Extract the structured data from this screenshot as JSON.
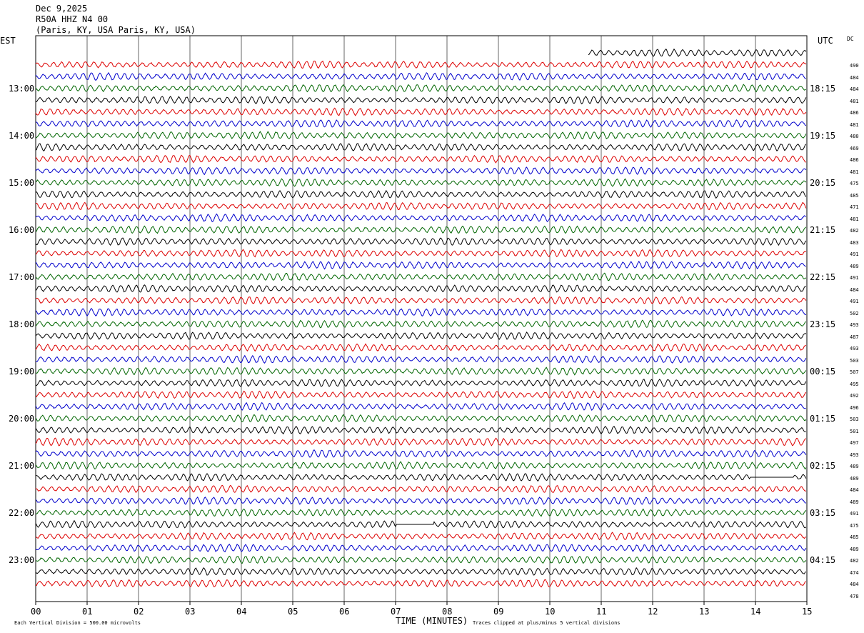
{
  "header": {
    "date": "Dec 9,2025",
    "station": "R50A HHZ N4 00",
    "location": "(Paris, KY, USA Paris, KY, USA)"
  },
  "left_tz": "EST",
  "right_tz": "UTC",
  "dc_label": "DC",
  "chart_data": {
    "type": "line",
    "title": "",
    "xlabel": "TIME (MINUTES)",
    "xlim": [
      0,
      15
    ],
    "x_ticks": [
      "00",
      "01",
      "02",
      "03",
      "04",
      "05",
      "06",
      "07",
      "08",
      "09",
      "10",
      "11",
      "12",
      "13",
      "14",
      "15"
    ],
    "left_hour_labels": [
      "13:00",
      "14:00",
      "15:00",
      "16:00",
      "17:00",
      "18:00",
      "19:00",
      "20:00",
      "21:00",
      "22:00",
      "23:00"
    ],
    "right_hour_labels": [
      "18:15",
      "19:15",
      "20:15",
      "21:15",
      "22:15",
      "23:15",
      "00:15",
      "01:15",
      "02:15",
      "03:15",
      "04:15"
    ],
    "trace_colors": [
      "#000000",
      "#dd0000",
      "#0000cc",
      "#006600"
    ],
    "first_trace_start_minute": 10.75,
    "dc_offsets": [
      "490",
      "484",
      "484",
      "481",
      "486",
      "481",
      "480",
      "469",
      "486",
      "481",
      "475",
      "485",
      "471",
      "481",
      "482",
      "483",
      "491",
      "489",
      "491",
      "484",
      "491",
      "502",
      "493",
      "487",
      "493",
      "503",
      "507",
      "495",
      "492",
      "496",
      "503",
      "501",
      "497",
      "493",
      "489",
      "489",
      "484",
      "489",
      "491",
      "475",
      "485",
      "489",
      "482",
      "474",
      "484",
      "478"
    ],
    "flat_segments": [
      {
        "trace": 36,
        "from_minute": 13.9,
        "to_minute": 14.75
      },
      {
        "trace": 40,
        "from_minute": 7.0,
        "to_minute": 7.75
      }
    ]
  },
  "footer": {
    "scale": "Each Vertical Division =  500.00 microvolts",
    "clip_note": "Traces clipped at plus/minus 5 vertical divisions"
  }
}
